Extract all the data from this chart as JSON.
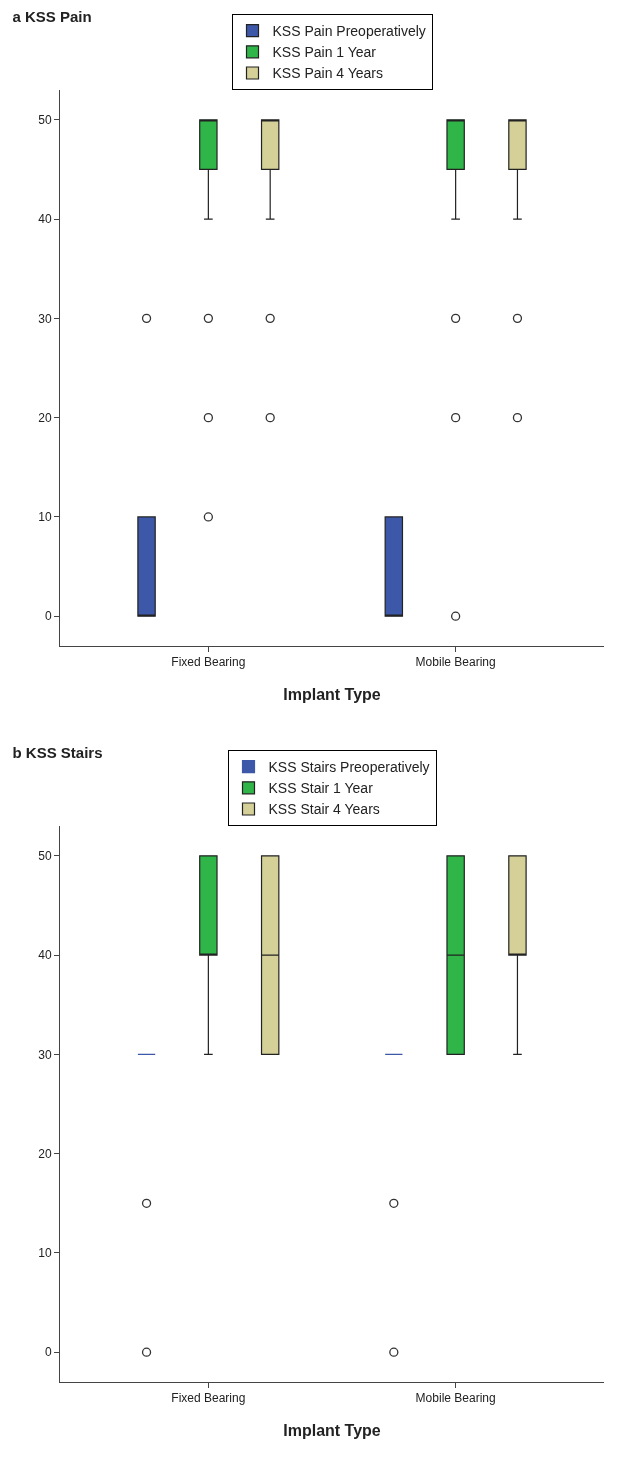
{
  "chart_data": [
    {
      "type": "box",
      "title": "a KSS Pain",
      "xlabel": "Implant Type",
      "categories": [
        "Fixed Bearing",
        "Mobile Bearing"
      ],
      "ylim": [
        -3,
        53
      ],
      "yticks": [
        0,
        10,
        20,
        30,
        40,
        50
      ],
      "grid": false,
      "legend": "top",
      "marker": "circle",
      "series": [
        {
          "name": "KSS Pain Preoperatively",
          "color": "#3d58a8",
          "boxes": [
            {
              "low": 0,
              "q1": 0,
              "median": 0,
              "q3": 10,
              "high": 10,
              "outliers": [
                30
              ]
            },
            {
              "low": 0,
              "q1": 0,
              "median": 0,
              "q3": 10,
              "high": 10
            }
          ]
        },
        {
          "name": "KSS Pain 1 Year",
          "color": "#2fb548",
          "boxes": [
            {
              "low": 40,
              "q1": 45,
              "median": 50,
              "q3": 50,
              "high": 50,
              "outliers": [
                30,
                20,
                10
              ]
            },
            {
              "low": 40,
              "q1": 45,
              "median": 50,
              "q3": 50,
              "high": 50,
              "outliers": [
                30,
                20,
                0
              ]
            }
          ]
        },
        {
          "name": "KSS Pain 4 Years",
          "color": "#d4d098",
          "boxes": [
            {
              "low": 40,
              "q1": 45,
              "median": 50,
              "q3": 50,
              "high": 50,
              "outliers": [
                30,
                20
              ]
            },
            {
              "low": 40,
              "q1": 45,
              "median": 50,
              "q3": 50,
              "high": 50,
              "outliers": [
                30,
                20
              ]
            }
          ]
        }
      ]
    },
    {
      "type": "box",
      "title": "b KSS Stairs",
      "xlabel": "Implant Type",
      "categories": [
        "Fixed Bearing",
        "Mobile Bearing"
      ],
      "ylim": [
        -3,
        53
      ],
      "yticks": [
        0,
        10,
        20,
        30,
        40,
        50
      ],
      "grid": false,
      "legend": "top",
      "marker": "circle",
      "series": [
        {
          "name": "KSS Stairs Preoperatively",
          "color": "#3d58a8",
          "boxes": [
            {
              "low": 30,
              "q1": 30,
              "median": 30,
              "q3": 30,
              "high": 30,
              "outliers": [
                15,
                0
              ]
            },
            {
              "low": 30,
              "q1": 30,
              "median": 30,
              "q3": 30,
              "high": 30,
              "outliers": [
                15,
                0
              ]
            }
          ]
        },
        {
          "name": "KSS Stair 1 Year",
          "color": "#2fb548",
          "boxes": [
            {
              "low": 30,
              "q1": 40,
              "median": 40,
              "q3": 50,
              "high": 50
            },
            {
              "low": 30,
              "q1": 30,
              "median": 40,
              "q3": 50,
              "high": 50
            }
          ]
        },
        {
          "name": "KSS Stair 4 Years",
          "color": "#d4d098",
          "boxes": [
            {
              "low": 30,
              "q1": 30,
              "median": 40,
              "q3": 50,
              "high": 50
            },
            {
              "low": 30,
              "q1": 40,
              "median": 40,
              "q3": 50,
              "high": 50
            }
          ]
        }
      ]
    }
  ]
}
